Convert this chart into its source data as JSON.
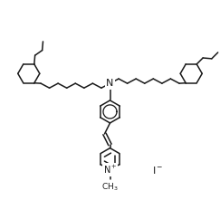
{
  "background": "#ffffff",
  "line_color": "#1a1a1a",
  "line_width": 1.1,
  "font_size": 7,
  "fig_width": 2.43,
  "fig_height": 2.42,
  "dpi": 100
}
